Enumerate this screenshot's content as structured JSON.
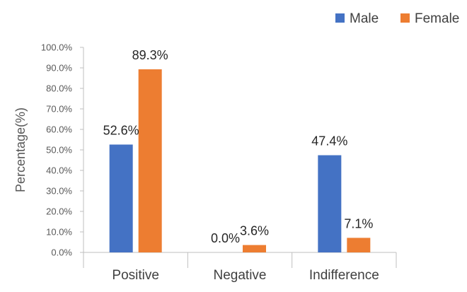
{
  "chart_data": {
    "type": "bar",
    "title": "",
    "xlabel": "",
    "ylabel": "Percentage(%)",
    "ylim": [
      0,
      100
    ],
    "y_ticks": [
      0,
      10,
      20,
      30,
      40,
      50,
      60,
      70,
      80,
      90,
      100
    ],
    "y_tick_labels": [
      "0.0%",
      "10.0%",
      "20.0%",
      "30.0%",
      "40.0%",
      "50.0%",
      "60.0%",
      "70.0%",
      "80.0%",
      "90.0%",
      "100.0%"
    ],
    "grid": false,
    "legend_position": "top-right",
    "categories": [
      "Positive",
      "Negative",
      "Indifference"
    ],
    "series": [
      {
        "name": "Male",
        "color": "#4472C4",
        "values": [
          52.6,
          0.0,
          47.4
        ],
        "labels": [
          "52.6%",
          "0.0%",
          "47.4%"
        ]
      },
      {
        "name": "Female",
        "color": "#ED7D31",
        "values": [
          89.3,
          3.6,
          7.1
        ],
        "labels": [
          "89.3%",
          "3.6%",
          "7.1%"
        ]
      }
    ]
  }
}
